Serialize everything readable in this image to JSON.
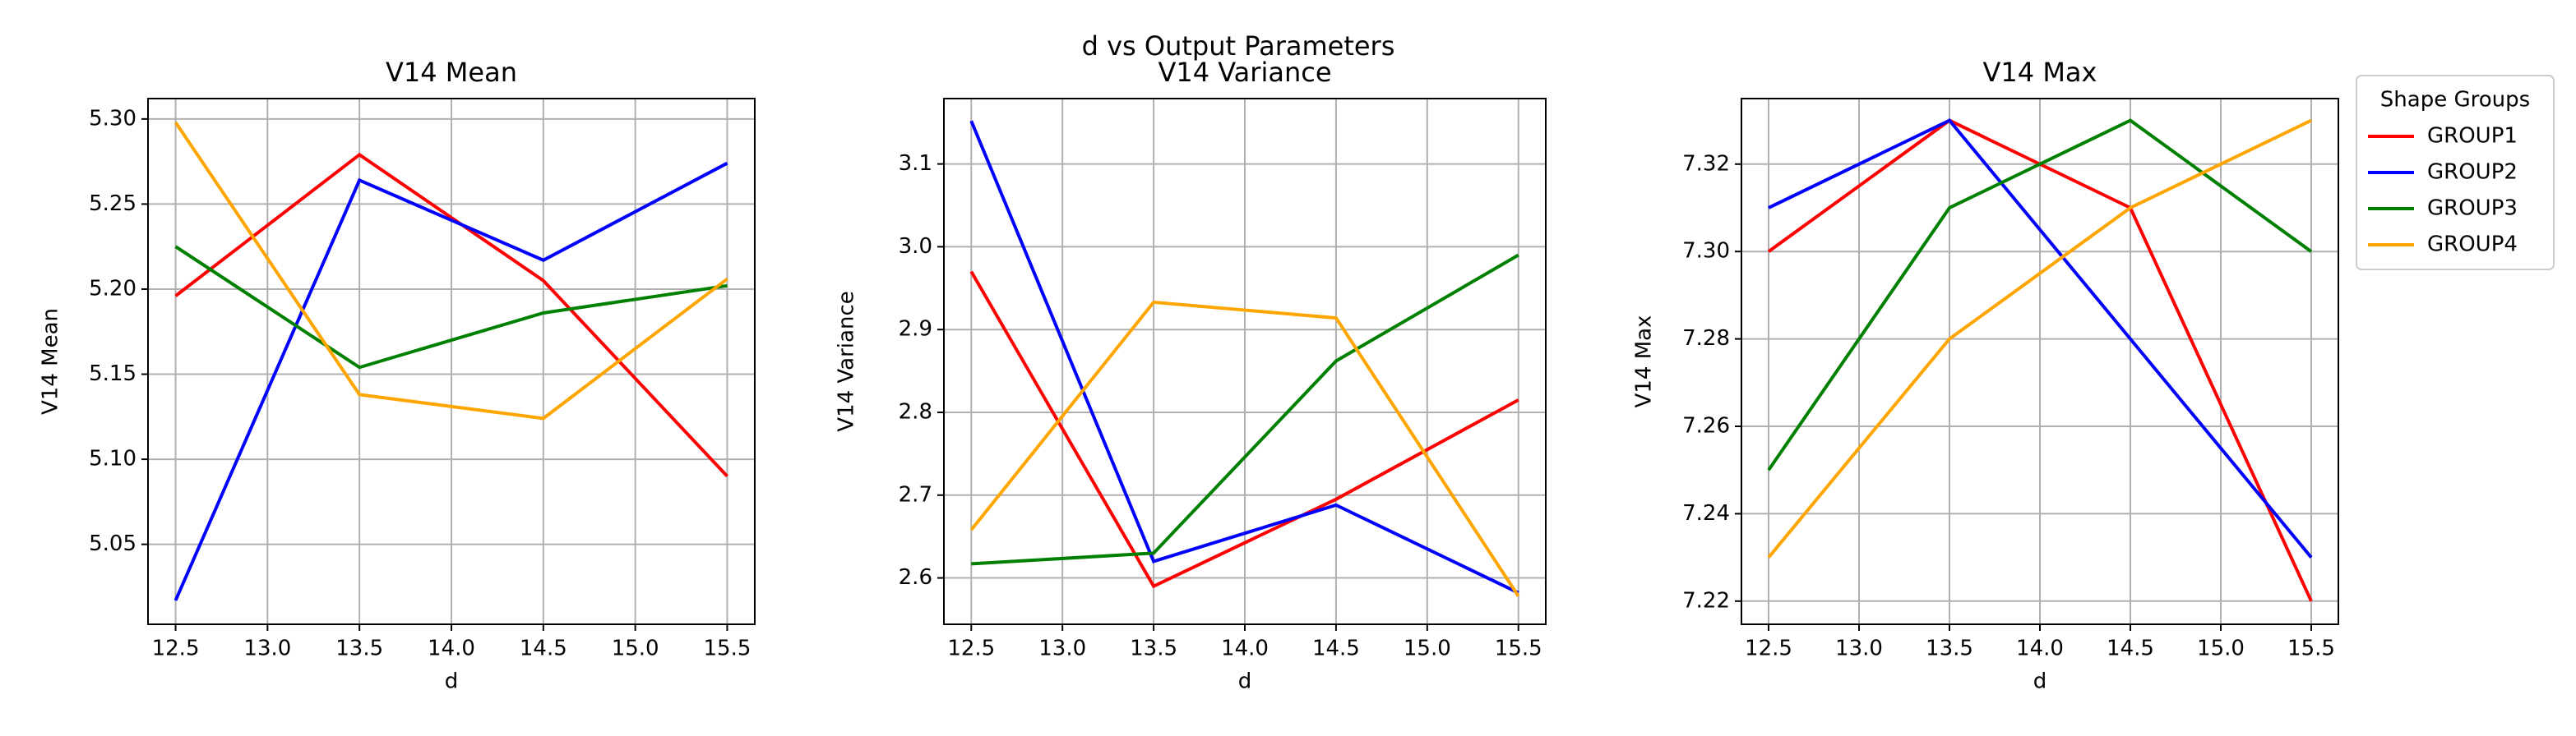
{
  "suptitle": "d vs Output Parameters",
  "legend_title": "Shape Groups",
  "chart_data": [
    {
      "type": "line",
      "title": "V14 Mean",
      "x_label": "d",
      "y_label": "V14 Mean",
      "x": [
        12.5,
        13.5,
        14.5,
        15.5
      ],
      "series": [
        {
          "name": "GROUP1",
          "color": "#ff0000",
          "values": [
            5.196,
            5.279,
            5.205,
            5.09
          ]
        },
        {
          "name": "GROUP2",
          "color": "#0000ff",
          "values": [
            5.017,
            5.264,
            5.217,
            5.274
          ]
        },
        {
          "name": "GROUP3",
          "color": "#008000",
          "values": [
            5.225,
            5.154,
            5.186,
            5.202
          ]
        },
        {
          "name": "GROUP4",
          "color": "#ffa500",
          "values": [
            5.298,
            5.138,
            5.124,
            5.206
          ]
        }
      ],
      "xlim": [
        12.35,
        15.65
      ],
      "ylim": [
        5.003,
        5.312
      ],
      "xticks": [
        12.5,
        {
          "value": 13,
          "label": "13.0"
        },
        13.5,
        {
          "value": 14,
          "label": "14.0"
        },
        14.5,
        {
          "value": 15,
          "label": "15.0"
        },
        15.5
      ],
      "yticks": [
        5.05,
        {
          "value": 5.1,
          "label": "5.10"
        },
        5.15,
        {
          "value": 5.2,
          "label": "5.20"
        },
        5.25,
        {
          "value": 5.3,
          "label": "5.30"
        }
      ],
      "grid": true
    },
    {
      "type": "line",
      "title": "V14 Variance",
      "x_label": "d",
      "y_label": "V14 Variance",
      "x": [
        12.5,
        13.5,
        14.5,
        15.5
      ],
      "series": [
        {
          "name": "GROUP1",
          "color": "#ff0000",
          "values": [
            2.97,
            2.59,
            2.695,
            2.815
          ]
        },
        {
          "name": "GROUP2",
          "color": "#0000ff",
          "values": [
            3.152,
            2.62,
            2.688,
            2.582
          ]
        },
        {
          "name": "GROUP3",
          "color": "#008000",
          "values": [
            2.617,
            2.63,
            2.862,
            2.99
          ]
        },
        {
          "name": "GROUP4",
          "color": "#ffa500",
          "values": [
            2.658,
            2.933,
            2.914,
            2.578
          ]
        }
      ],
      "xlim": [
        12.35,
        15.65
      ],
      "ylim": [
        2.544,
        3.179
      ],
      "xticks": [
        12.5,
        {
          "value": 13,
          "label": "13.0"
        },
        13.5,
        {
          "value": 14,
          "label": "14.0"
        },
        14.5,
        {
          "value": 15,
          "label": "15.0"
        },
        15.5
      ],
      "yticks": [
        2.6,
        2.7,
        2.8,
        2.9,
        {
          "value": 3,
          "label": "3.0"
        },
        3.1
      ],
      "grid": true
    },
    {
      "type": "line",
      "title": "V14 Max",
      "x_label": "d",
      "y_label": "V14 Max",
      "x": [
        12.5,
        13.5,
        14.5,
        15.5
      ],
      "series": [
        {
          "name": "GROUP1",
          "color": "#ff0000",
          "values": [
            7.3,
            7.33,
            7.31,
            7.22
          ]
        },
        {
          "name": "GROUP2",
          "color": "#0000ff",
          "values": [
            7.31,
            7.33,
            7.28,
            7.23
          ]
        },
        {
          "name": "GROUP3",
          "color": "#008000",
          "values": [
            7.25,
            7.31,
            7.33,
            7.3
          ]
        },
        {
          "name": "GROUP4",
          "color": "#ffa500",
          "values": [
            7.23,
            7.28,
            7.31,
            7.33
          ]
        }
      ],
      "xlim": [
        12.35,
        15.65
      ],
      "ylim": [
        7.2147,
        7.335
      ],
      "xticks": [
        12.5,
        {
          "value": 13,
          "label": "13.0"
        },
        13.5,
        {
          "value": 14,
          "label": "14.0"
        },
        14.5,
        {
          "value": 15,
          "label": "15.0"
        },
        15.5
      ],
      "yticks": [
        7.22,
        7.24,
        7.26,
        7.28,
        {
          "value": 7.3,
          "label": "7.30"
        },
        7.32
      ],
      "grid": true,
      "legend": "outside right"
    }
  ]
}
